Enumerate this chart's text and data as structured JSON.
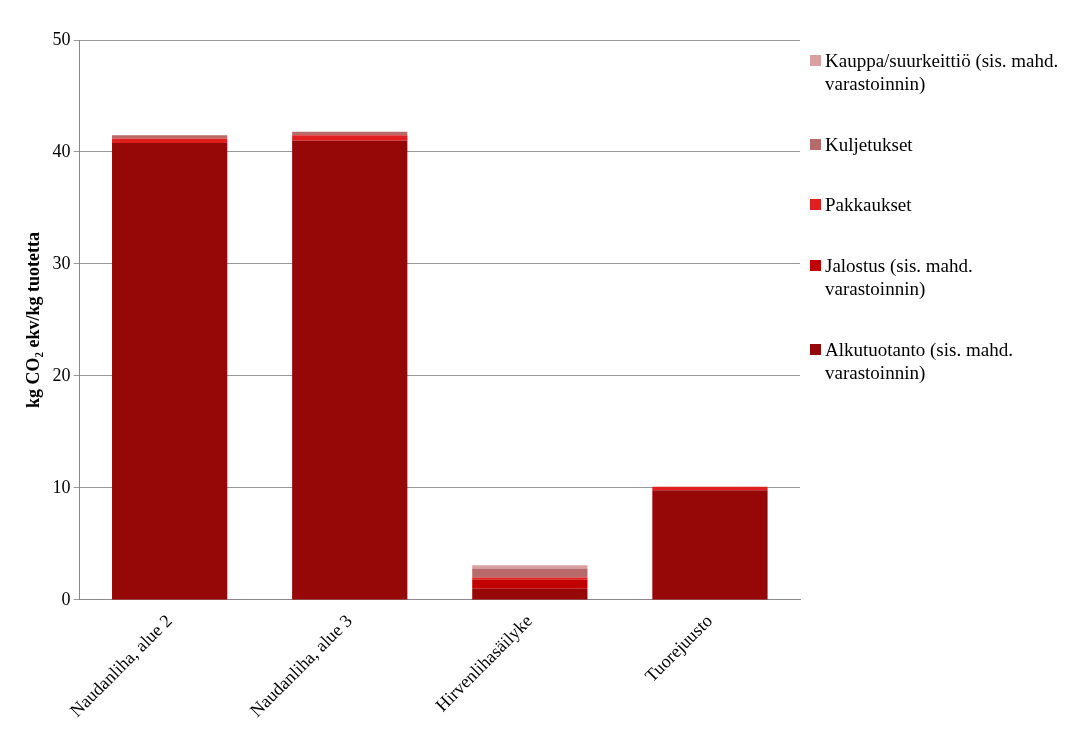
{
  "chart_data": {
    "type": "bar",
    "stacked": true,
    "ylabel": "kg CO₂ ekv/kg tuotetta",
    "categories": [
      "Naudanliha, alue 2",
      "Naudanliha, alue 3",
      "Hirvenlihasäilyke",
      "Tuorejuusto"
    ],
    "series": [
      {
        "name": "Alkutuotanto (sis. mahd. varastoinnin)",
        "color": "#960808",
        "values": [
          40.8,
          41.0,
          1.0,
          9.8
        ]
      },
      {
        "name": "Jalostus (sis. mahd. varastoinnin)",
        "color": "#c00000",
        "values": [
          0,
          0,
          0.8,
          0
        ]
      },
      {
        "name": "Pakkaukset",
        "color": "#e02020",
        "values": [
          0.4,
          0.5,
          0.2,
          0.3
        ]
      },
      {
        "name": "Kuljetukset",
        "color": "#b86a6a",
        "values": [
          0.3,
          0.3,
          0.8,
          0
        ]
      },
      {
        "name": "Kauppa/suurkeittiö (sis. mahd. varastoinnin)",
        "color": "#d8a0a0",
        "values": [
          0,
          0,
          0.3,
          0
        ]
      }
    ],
    "ylim": [
      0,
      50
    ],
    "yticks": [
      0,
      10,
      20,
      30,
      40,
      50
    ],
    "grid": "y",
    "legend": "right"
  }
}
